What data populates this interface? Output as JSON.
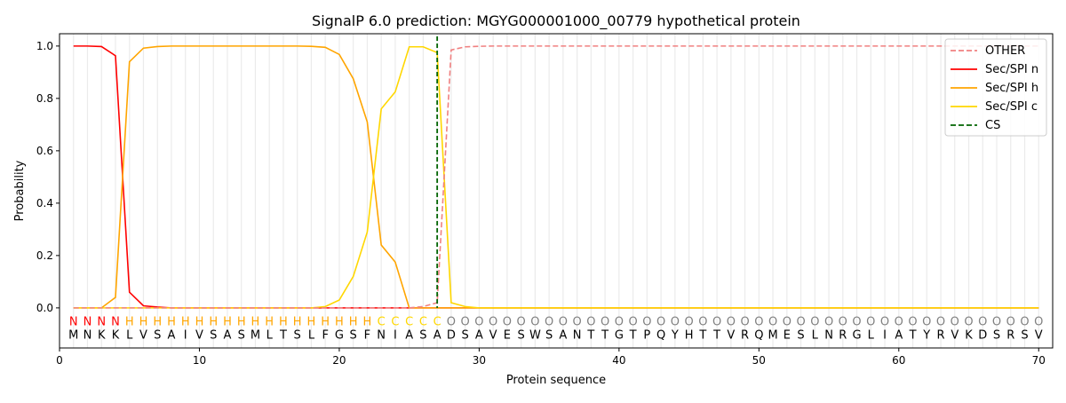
{
  "chart_data": {
    "type": "line",
    "title": "SignalP 6.0 prediction: MGYG000001000_00779 hypothetical protein",
    "xlabel": "Protein sequence",
    "ylabel": "Probability",
    "xlim": [
      0,
      71
    ],
    "ylim": [
      -0.153,
      1.047
    ],
    "xticks": [
      0,
      10,
      20,
      30,
      40,
      50,
      60,
      70
    ],
    "yticks": [
      "0.0",
      "0.2",
      "0.4",
      "0.6",
      "0.8",
      "1.0"
    ],
    "grid": "vertical lines at each residue",
    "legend_position": "top-right",
    "sequence": "MNKKLVSAIVSASMLTSLFGSFNIASADSAVESWSANTTGTPQYHTTVRQMESLNRGLIATYRVKDSRSV",
    "labels": "NNNNHHHHHHHHHHHHHHHHHHCCCCCOOOOOOOOOOOOOOOOOOOOOOOOOOOOOOOOOOOOOOOOOOO",
    "label_colors": {
      "N": "#ff0000",
      "H": "#ffa500",
      "C": "#ffd700",
      "O": "#808080"
    },
    "cleavage_site": 27,
    "series": [
      {
        "name": "OTHER",
        "color": "#f08080",
        "dash": true,
        "values": {
          "26": 0.005,
          "27": 0.02,
          "28": 0.985,
          "29": 0.997,
          "30": 0.999,
          "default_after_30": 1.0
        }
      },
      {
        "name": "Sec/SPI n",
        "color": "#ff0000",
        "values": {
          "1": 1.0,
          "2": 1.0,
          "3": 0.998,
          "4": 0.963,
          "5": 0.06,
          "6": 0.008,
          "7": 0.003
        }
      },
      {
        "name": "Sec/SPI h",
        "color": "#ffa500",
        "values": {
          "4": 0.04,
          "5": 0.94,
          "6": 0.992,
          "7": 0.998,
          "8": 1.0,
          "9": 1.0,
          "10": 1.0,
          "11": 1.0,
          "12": 1.0,
          "13": 1.0,
          "14": 1.0,
          "15": 1.0,
          "16": 1.0,
          "17": 1.0,
          "18": 0.999,
          "19": 0.995,
          "20": 0.968,
          "21": 0.875,
          "22": 0.71,
          "23": 0.24,
          "24": 0.175,
          "25": 0.0
        }
      },
      {
        "name": "Sec/SPI c",
        "color": "#ffd700",
        "values": {
          "19": 0.005,
          "20": 0.03,
          "21": 0.12,
          "22": 0.29,
          "23": 0.76,
          "24": 0.825,
          "25": 0.997,
          "26": 0.997,
          "27": 0.975,
          "28": 0.02,
          "29": 0.005
        }
      },
      {
        "name": "CS",
        "color": "#006400",
        "dash": true,
        "vertical": true
      }
    ]
  }
}
